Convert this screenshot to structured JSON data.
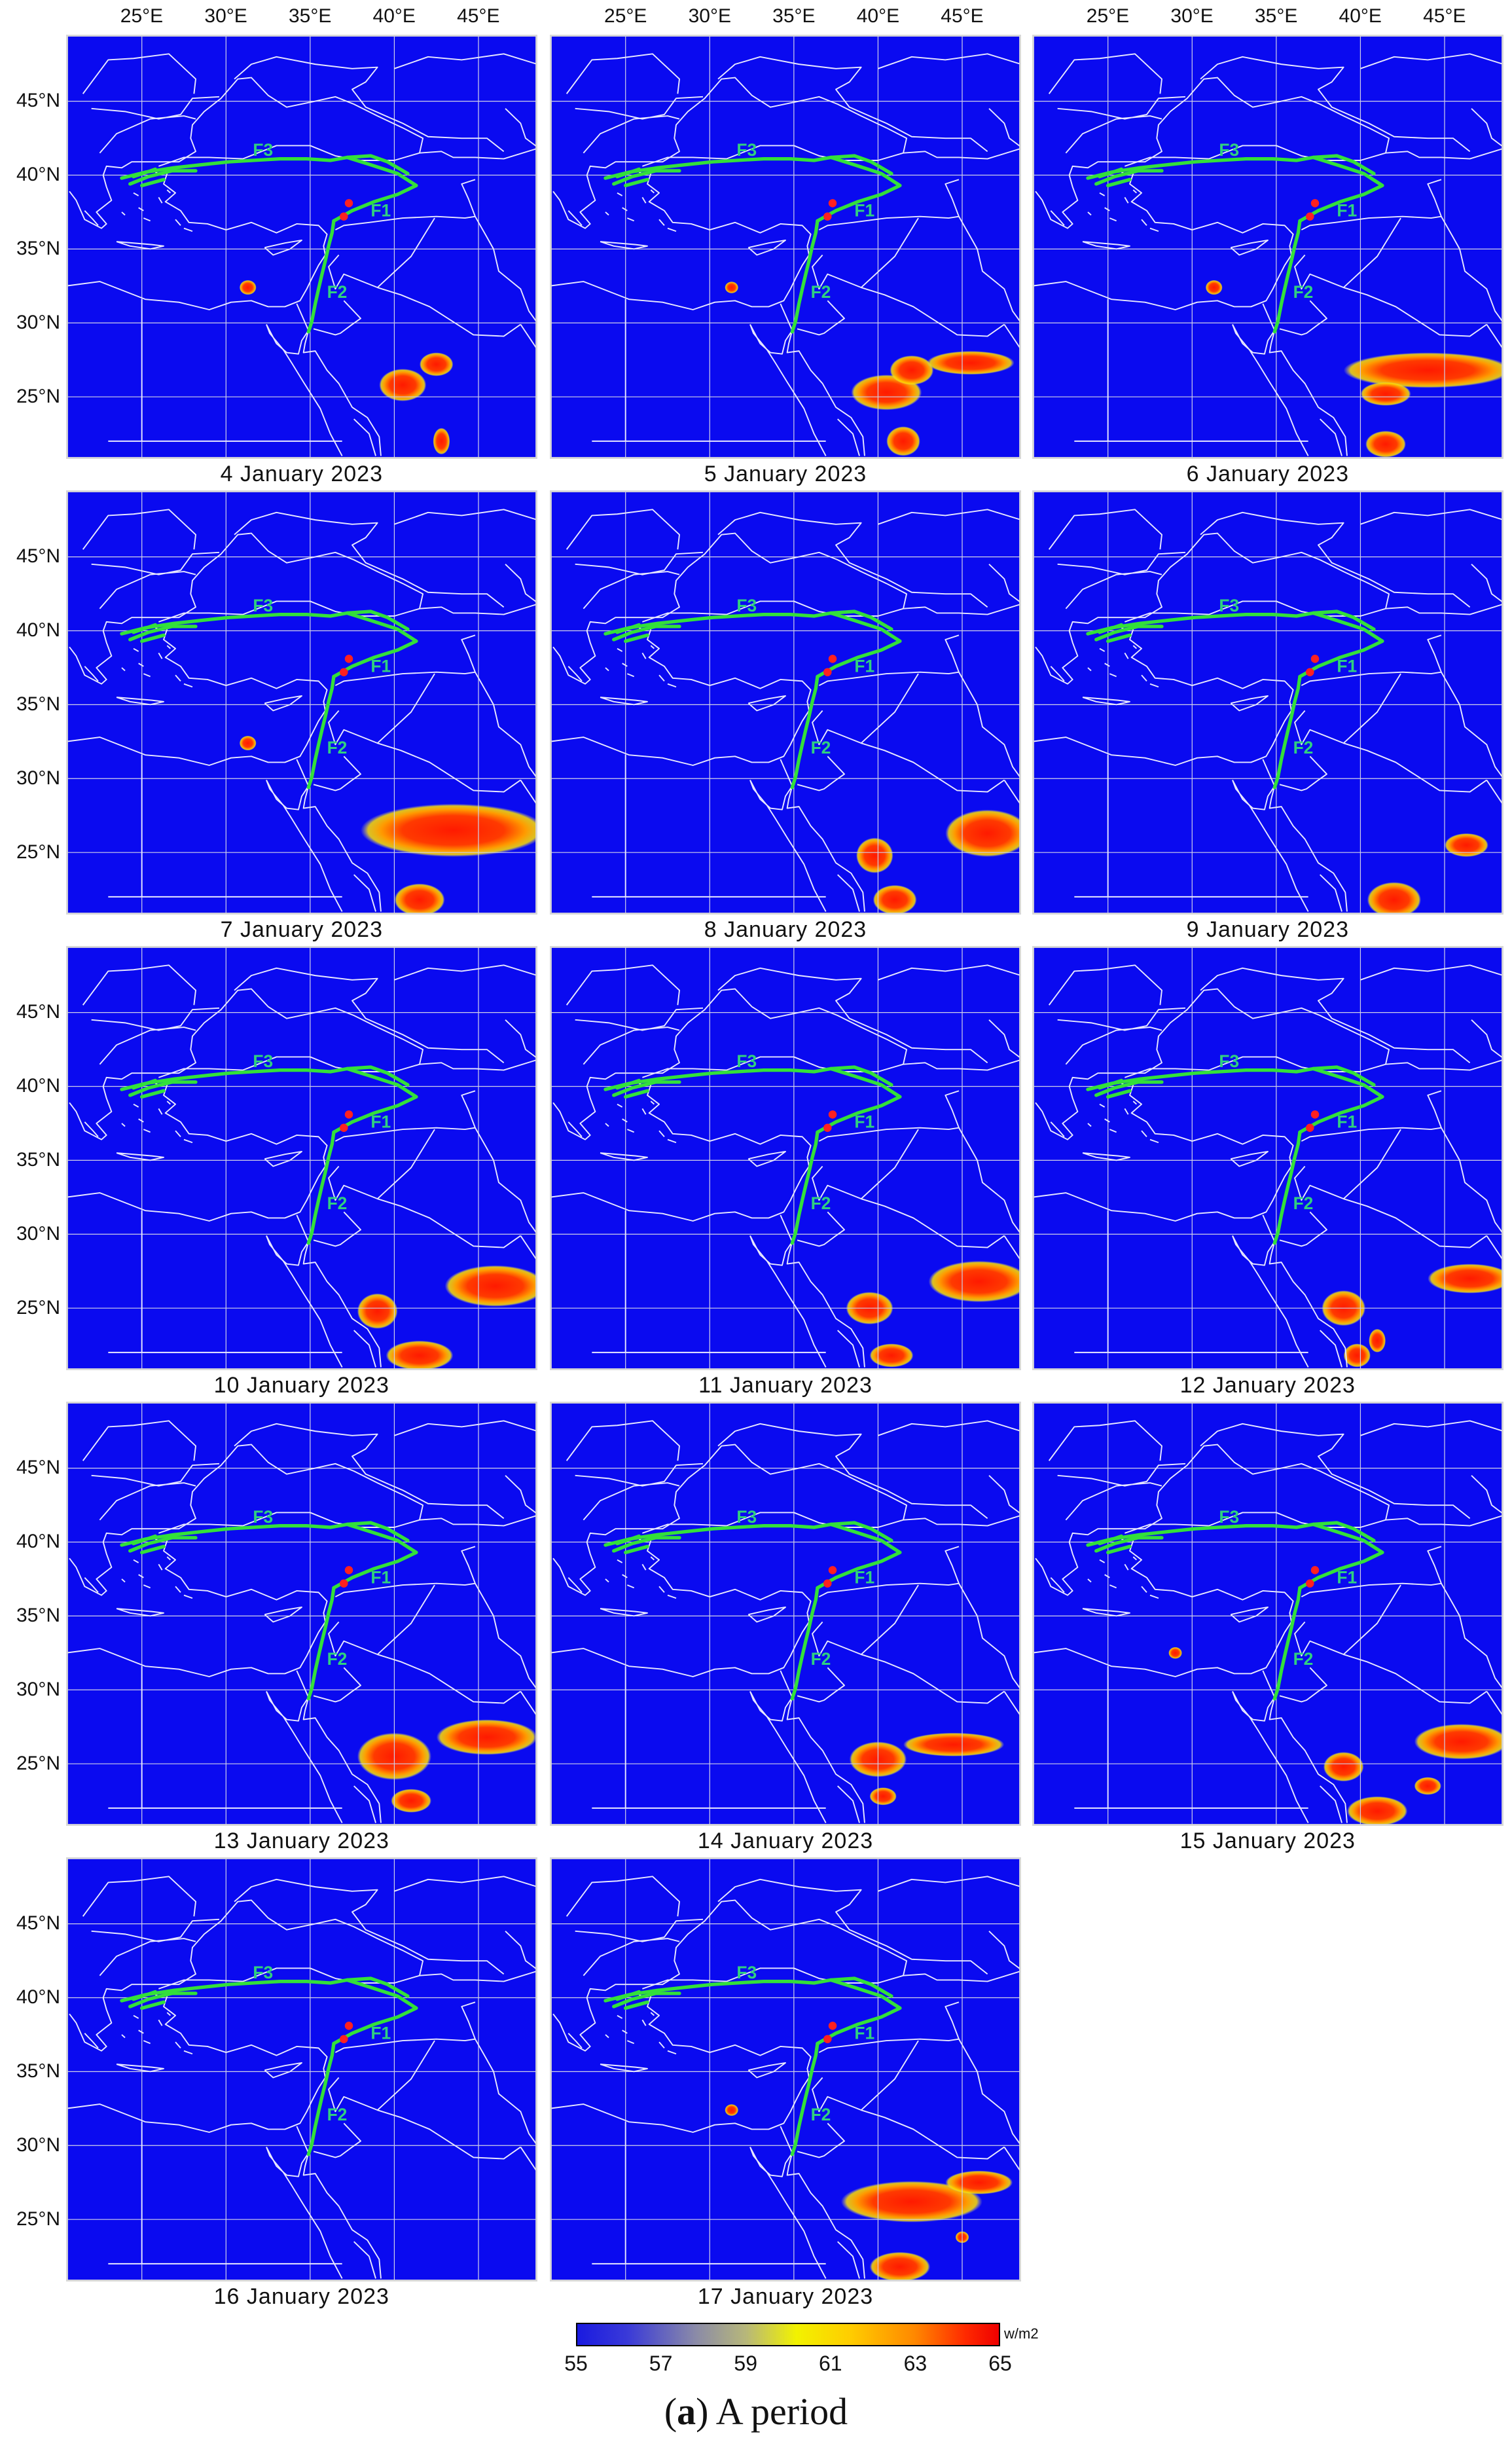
{
  "top_ticks": [
    "25°E",
    "30°E",
    "35°E",
    "40°E",
    "45°E"
  ],
  "lat_ticks": [
    "45°N",
    "40°N",
    "35°N",
    "30°N",
    "25°N"
  ],
  "fault_labels": [
    "F1",
    "F2",
    "F3"
  ],
  "panels": [
    {
      "date": "4 January 2023",
      "anomalies": [
        {
          "lon": 31.3,
          "lat": 32.4,
          "rx": 0.5,
          "ry": 0.5
        },
        {
          "lon": 40.5,
          "lat": 25.8,
          "rx": 1.4,
          "ry": 1.1
        },
        {
          "lon": 42.5,
          "lat": 27.2,
          "rx": 1.0,
          "ry": 0.8
        },
        {
          "lon": 42.8,
          "lat": 22.0,
          "rx": 0.5,
          "ry": 0.9
        }
      ]
    },
    {
      "date": "5 January 2023",
      "anomalies": [
        {
          "lon": 31.3,
          "lat": 32.4,
          "rx": 0.4,
          "ry": 0.4
        },
        {
          "lon": 40.5,
          "lat": 25.3,
          "rx": 2.1,
          "ry": 1.2
        },
        {
          "lon": 42.0,
          "lat": 26.8,
          "rx": 1.3,
          "ry": 1.0
        },
        {
          "lon": 45.5,
          "lat": 27.3,
          "rx": 2.6,
          "ry": 0.8
        },
        {
          "lon": 41.5,
          "lat": 22.0,
          "rx": 1.0,
          "ry": 1.0
        }
      ]
    },
    {
      "date": "6 January 2023",
      "anomalies": [
        {
          "lon": 31.3,
          "lat": 32.4,
          "rx": 0.5,
          "ry": 0.5
        },
        {
          "lon": 44.0,
          "lat": 26.8,
          "rx": 5.0,
          "ry": 1.2
        },
        {
          "lon": 41.5,
          "lat": 25.2,
          "rx": 1.5,
          "ry": 0.8
        },
        {
          "lon": 41.5,
          "lat": 21.8,
          "rx": 1.2,
          "ry": 0.9
        }
      ]
    },
    {
      "date": "7 January 2023",
      "anomalies": [
        {
          "lon": 31.3,
          "lat": 32.4,
          "rx": 0.5,
          "ry": 0.5
        },
        {
          "lon": 43.5,
          "lat": 26.5,
          "rx": 5.5,
          "ry": 1.8
        },
        {
          "lon": 41.5,
          "lat": 21.8,
          "rx": 1.5,
          "ry": 1.1
        }
      ]
    },
    {
      "date": "8 January 2023",
      "anomalies": [
        {
          "lon": 39.8,
          "lat": 24.8,
          "rx": 1.1,
          "ry": 1.2
        },
        {
          "lon": 46.5,
          "lat": 26.3,
          "rx": 2.5,
          "ry": 1.6
        },
        {
          "lon": 41.0,
          "lat": 21.8,
          "rx": 1.3,
          "ry": 1.0
        }
      ]
    },
    {
      "date": "9 January 2023",
      "anomalies": [
        {
          "lon": 46.3,
          "lat": 25.5,
          "rx": 1.3,
          "ry": 0.8
        },
        {
          "lon": 42.0,
          "lat": 21.8,
          "rx": 1.6,
          "ry": 1.2
        }
      ]
    },
    {
      "date": "10 January 2023",
      "anomalies": [
        {
          "lon": 39.0,
          "lat": 24.8,
          "rx": 1.2,
          "ry": 1.2
        },
        {
          "lon": 46.0,
          "lat": 26.5,
          "rx": 3.0,
          "ry": 1.4
        },
        {
          "lon": 41.5,
          "lat": 21.8,
          "rx": 2.0,
          "ry": 1.0
        }
      ]
    },
    {
      "date": "11 January 2023",
      "anomalies": [
        {
          "lon": 39.5,
          "lat": 25.0,
          "rx": 1.4,
          "ry": 1.1
        },
        {
          "lon": 46.0,
          "lat": 26.8,
          "rx": 3.0,
          "ry": 1.4
        },
        {
          "lon": 40.8,
          "lat": 21.8,
          "rx": 1.3,
          "ry": 0.8
        }
      ]
    },
    {
      "date": "12 January 2023",
      "anomalies": [
        {
          "lon": 39.0,
          "lat": 25.0,
          "rx": 1.3,
          "ry": 1.2
        },
        {
          "lon": 46.5,
          "lat": 27.0,
          "rx": 2.5,
          "ry": 1.0
        },
        {
          "lon": 39.8,
          "lat": 21.8,
          "rx": 0.8,
          "ry": 0.8
        },
        {
          "lon": 41.0,
          "lat": 22.8,
          "rx": 0.5,
          "ry": 0.8
        }
      ]
    },
    {
      "date": "13 January 2023",
      "anomalies": [
        {
          "lon": 40.0,
          "lat": 25.5,
          "rx": 2.2,
          "ry": 1.6
        },
        {
          "lon": 45.5,
          "lat": 26.8,
          "rx": 3.0,
          "ry": 1.2
        },
        {
          "lon": 41.0,
          "lat": 22.5,
          "rx": 1.2,
          "ry": 0.8
        }
      ]
    },
    {
      "date": "14 January 2023",
      "anomalies": [
        {
          "lon": 40.0,
          "lat": 25.3,
          "rx": 1.7,
          "ry": 1.2
        },
        {
          "lon": 44.5,
          "lat": 26.3,
          "rx": 3.0,
          "ry": 0.8
        },
        {
          "lon": 40.3,
          "lat": 22.8,
          "rx": 0.8,
          "ry": 0.6
        }
      ]
    },
    {
      "date": "15 January 2023",
      "anomalies": [
        {
          "lon": 29.0,
          "lat": 32.5,
          "rx": 0.4,
          "ry": 0.4
        },
        {
          "lon": 39.0,
          "lat": 24.8,
          "rx": 1.2,
          "ry": 1.0
        },
        {
          "lon": 46.0,
          "lat": 26.5,
          "rx": 2.8,
          "ry": 1.2
        },
        {
          "lon": 44.0,
          "lat": 23.5,
          "rx": 0.8,
          "ry": 0.6
        },
        {
          "lon": 41.0,
          "lat": 21.8,
          "rx": 1.8,
          "ry": 1.0
        }
      ]
    },
    {
      "date": "16 January 2023",
      "anomalies": []
    },
    {
      "date": "17 January 2023",
      "anomalies": [
        {
          "lon": 31.3,
          "lat": 32.4,
          "rx": 0.4,
          "ry": 0.4
        },
        {
          "lon": 42.0,
          "lat": 26.2,
          "rx": 4.2,
          "ry": 1.4
        },
        {
          "lon": 46.0,
          "lat": 27.5,
          "rx": 2.0,
          "ry": 0.8
        },
        {
          "lon": 41.3,
          "lat": 21.8,
          "rx": 1.8,
          "ry": 1.0
        },
        {
          "lon": 45.0,
          "lat": 23.8,
          "rx": 0.4,
          "ry": 0.4
        }
      ]
    }
  ],
  "colorbar": {
    "ticks": [
      "55",
      "57",
      "59",
      "61",
      "63",
      "65"
    ],
    "unit": "w/m2"
  },
  "caption": {
    "letter": "a",
    "open": "(",
    "close": ")",
    "text": " A period"
  },
  "colors": {
    "background": "#0a0af0",
    "grid": "#d0d0e8",
    "border": "#d8d8d8",
    "fault": "#33e03a",
    "fault_label": "#30d080",
    "epicenter": "#ff2020",
    "anomaly_core": "#ff1a00"
  }
}
